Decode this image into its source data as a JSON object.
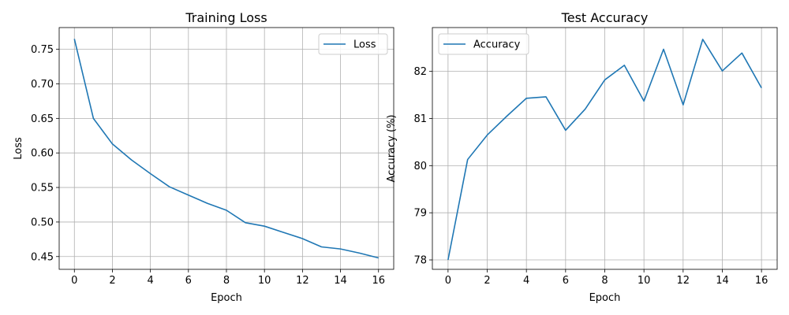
{
  "chart_data": [
    {
      "type": "line",
      "title": "Training Loss",
      "xlabel": "Epoch",
      "ylabel": "Loss",
      "xlim": [
        -0.8,
        16.8
      ],
      "ylim": [
        0.4315,
        0.7815
      ],
      "xticks": [
        0,
        2,
        4,
        6,
        8,
        10,
        12,
        14,
        16
      ],
      "yticks": [
        0.45,
        0.5,
        0.55,
        0.6,
        0.65,
        0.7,
        0.75
      ],
      "ytick_labels": [
        "0.45",
        "0.50",
        "0.55",
        "0.60",
        "0.65",
        "0.70",
        "0.75"
      ],
      "grid": true,
      "legend_position": "upper-right",
      "color": "#1f77b4",
      "x": [
        0,
        1,
        2,
        3,
        4,
        5,
        6,
        7,
        8,
        9,
        10,
        11,
        12,
        13,
        14,
        15,
        16
      ],
      "series": [
        {
          "name": "Loss",
          "values": [
            0.765,
            0.65,
            0.613,
            0.59,
            0.57,
            0.551,
            0.539,
            0.527,
            0.517,
            0.499,
            0.494,
            0.485,
            0.476,
            0.464,
            0.461,
            0.455,
            0.448
          ]
        }
      ]
    },
    {
      "type": "line",
      "title": "Test Accuracy",
      "xlabel": "Epoch",
      "ylabel": "Accuracy (%)",
      "xlim": [
        -0.8,
        16.8
      ],
      "ylim": [
        77.8,
        82.93
      ],
      "xticks": [
        0,
        2,
        4,
        6,
        8,
        10,
        12,
        14,
        16
      ],
      "yticks": [
        78,
        79,
        80,
        81,
        82
      ],
      "ytick_labels": [
        "78",
        "79",
        "80",
        "81",
        "82"
      ],
      "grid": true,
      "legend_position": "upper-left",
      "color": "#1f77b4",
      "x": [
        0,
        1,
        2,
        3,
        4,
        5,
        6,
        7,
        8,
        9,
        10,
        11,
        12,
        13,
        14,
        15,
        16
      ],
      "series": [
        {
          "name": "Accuracy",
          "values": [
            78.0,
            80.13,
            80.65,
            81.05,
            81.43,
            81.46,
            80.75,
            81.2,
            81.82,
            82.13,
            81.37,
            82.47,
            81.29,
            82.68,
            82.01,
            82.39,
            81.65
          ]
        }
      ]
    }
  ]
}
